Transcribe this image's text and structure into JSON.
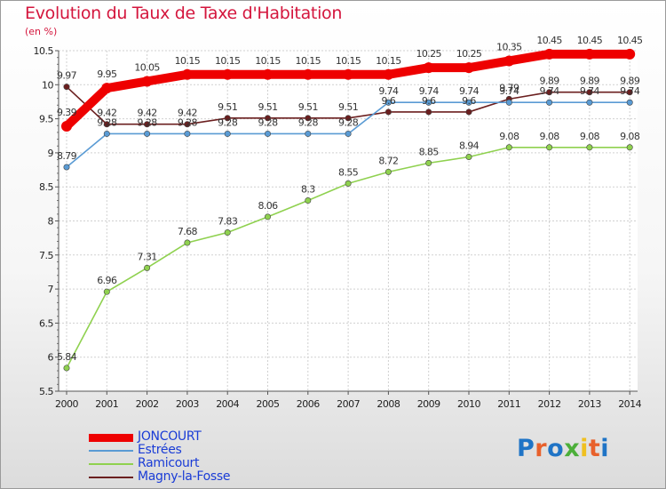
{
  "title": "Evolution du Taux de Taxe d'Habitation",
  "subtitle": "(en %)",
  "chart_data": {
    "type": "line",
    "x": [
      "2000",
      "2001",
      "2002",
      "2003",
      "2004",
      "2005",
      "2006",
      "2007",
      "2008",
      "2009",
      "2010",
      "2011",
      "2012",
      "2013",
      "2014"
    ],
    "ylim": [
      5.5,
      10.5
    ],
    "yticks": [
      "5.5",
      "6",
      "6.5",
      "7",
      "7.5",
      "8",
      "8.5",
      "9",
      "9.5",
      "10",
      "10.5"
    ],
    "grid": true,
    "legend_position": "bottom-left",
    "series": [
      {
        "name": "Magny-la-Fosse",
        "color": "#6b1f1f",
        "values": [
          9.97,
          9.42,
          9.42,
          9.42,
          9.51,
          9.51,
          9.51,
          9.51,
          9.6,
          9.6,
          9.6,
          9.79,
          9.89,
          9.89,
          9.89
        ],
        "labels": [
          "9.97",
          "9.42",
          "9.42",
          "9.42",
          "9.51",
          "9.51",
          "9.51",
          "9.51",
          "9.6",
          "9.6",
          "9.6",
          "9.79",
          "9.89",
          "9.89",
          "9.89"
        ]
      },
      {
        "name": "Estrées",
        "color": "#5a9bd4",
        "values": [
          8.79,
          9.28,
          9.28,
          9.28,
          9.28,
          9.28,
          9.28,
          9.28,
          9.74,
          9.74,
          9.74,
          9.74,
          9.74,
          9.74,
          9.74
        ],
        "labels": [
          "8.79",
          "9.28",
          "9.28",
          "9.28",
          "9.28",
          "9.28",
          "9.28",
          "9.28",
          "9.74",
          "9.74",
          "9.74",
          "9.74",
          "9.74",
          "9.74",
          "9.74"
        ]
      },
      {
        "name": "Ramicourt",
        "color": "#8fd14f",
        "values": [
          5.84,
          6.96,
          7.31,
          7.68,
          7.83,
          8.06,
          8.3,
          8.55,
          8.72,
          8.85,
          8.94,
          9.08,
          9.08,
          9.08,
          9.08
        ],
        "labels": [
          "5.84",
          "6.96",
          "7.31",
          "7.68",
          "7.83",
          "8.06",
          "8.3",
          "8.55",
          "8.72",
          "8.85",
          "8.94",
          "9.08",
          "9.08",
          "9.08",
          "9.08"
        ]
      },
      {
        "name": "JONCOURT",
        "color": "#ee0000",
        "values": [
          9.39,
          9.95,
          10.05,
          10.15,
          10.15,
          10.15,
          10.15,
          10.15,
          10.15,
          10.25,
          10.25,
          10.35,
          10.45,
          10.45,
          10.45
        ],
        "labels": [
          "9.39",
          "9.95",
          "10.05",
          "10.15",
          "10.15",
          "10.15",
          "10.15",
          "10.15",
          "10.15",
          "10.25",
          "10.25",
          "10.35",
          "10.45",
          "10.45",
          "10.45"
        ]
      }
    ]
  },
  "legend": [
    {
      "label": "JONCOURT",
      "color": "#ee0000"
    },
    {
      "label": "Estrées",
      "color": "#5a9bd4"
    },
    {
      "label": "Ramicourt",
      "color": "#8fd14f"
    },
    {
      "label": "Magny-la-Fosse",
      "color": "#6b1f1f"
    }
  ],
  "logo": {
    "text": "Proxiti",
    "letter_colors": [
      "#1f74c6",
      "#e8612c",
      "#1f74c6",
      "#4caf3a",
      "#f0c020",
      "#e8612c",
      "#1f74c6"
    ]
  }
}
